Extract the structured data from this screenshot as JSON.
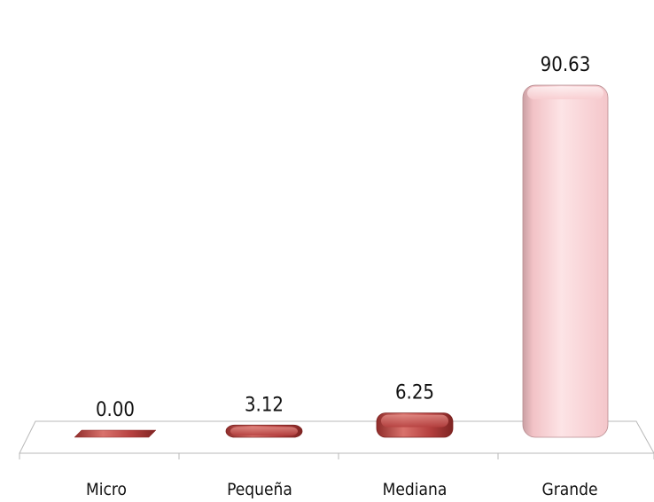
{
  "chart_data": {
    "type": "bar",
    "title": "",
    "xlabel": "",
    "ylabel": "",
    "categories": [
      "Micro",
      "Pequeña",
      "Mediana",
      "Grande"
    ],
    "values": [
      0.0,
      3.12,
      6.25,
      90.63
    ],
    "value_labels": [
      "0.00",
      "3.12",
      "6.25",
      "90.63"
    ],
    "ylim": [
      0,
      100
    ],
    "grid": false,
    "legend": "none",
    "style": "3d-rounded-bars",
    "colors": {
      "dark_bar": "#b5403f",
      "dark_bar_light": "#d9726c",
      "dark_bar_shadow": "#7e2422",
      "highlight_bar": "#f8cdd0",
      "highlight_bar_light": "#fde4e6",
      "highlight_bar_shadow": "#caa0a4"
    }
  }
}
